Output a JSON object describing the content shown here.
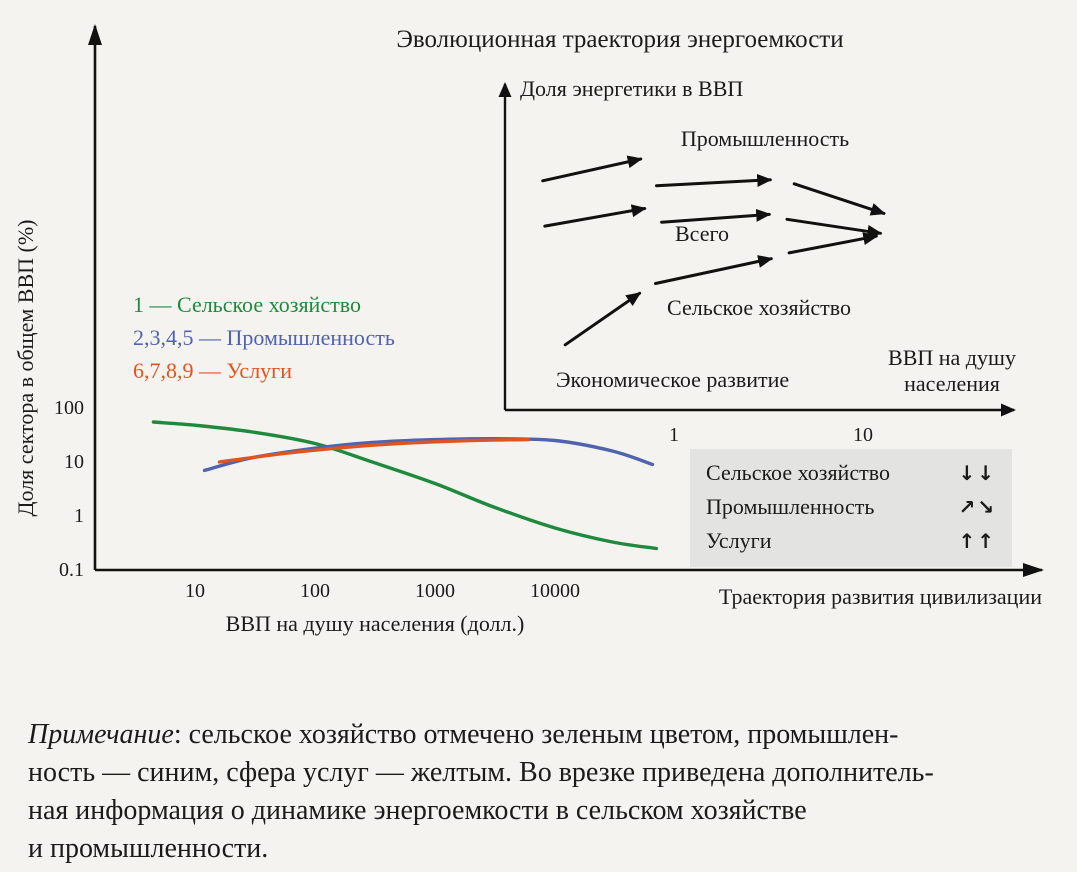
{
  "colors": {
    "page_bg": "#f5f3ef",
    "box_bg": "#e3e3e1",
    "axis": "#111111",
    "text": "#1b1b1b",
    "agriculture": "#1f8a3e",
    "industry": "#4f63ae",
    "services": "#e0551f"
  },
  "chart_data": [
    {
      "name": "main",
      "type": "line",
      "title": "Эволюционная траектория энергоемкости",
      "xlabel": "ВВП на душу населения (долл.)",
      "ylabel": "Доля сектора в общем ВВП (%)",
      "x_scale": "log",
      "y_scale": "log",
      "xlim": [
        4,
        100000
      ],
      "ylim": [
        0.1,
        1000
      ],
      "x_ticks": [
        "10",
        "100",
        "1000",
        "10000"
      ],
      "y_ticks": [
        "100",
        "10",
        "1",
        "0.1"
      ],
      "x_axis_annotation": "Траектория развития цивилизации",
      "grid": false,
      "legend_position": "left-middle",
      "series": [
        {
          "key": "agriculture",
          "name": "Сельское хозяйство",
          "legend_label": "1 — Сельское хозяйство",
          "color": "#1f8a3e",
          "points": [
            [
              4.5,
              55
            ],
            [
              10,
              48
            ],
            [
              30,
              36
            ],
            [
              100,
              22
            ],
            [
              300,
              10
            ],
            [
              1000,
              4
            ],
            [
              3000,
              1.5
            ],
            [
              10000,
              0.6
            ],
            [
              30000,
              0.33
            ],
            [
              70000,
              0.25
            ]
          ]
        },
        {
          "key": "industry",
          "name": "Промышленность",
          "legend_label": "2,3,4,5 — Промышленность",
          "color": "#4f63ae",
          "points": [
            [
              12,
              7
            ],
            [
              30,
              12
            ],
            [
              100,
              18
            ],
            [
              300,
              23
            ],
            [
              1000,
              26
            ],
            [
              3000,
              27
            ],
            [
              10000,
              25
            ],
            [
              30000,
              16
            ],
            [
              65000,
              9
            ]
          ]
        },
        {
          "key": "services",
          "name": "Услуги",
          "legend_label": "6,7,8,9 — Услуги",
          "color": "#e0551f",
          "points": [
            [
              16,
              10
            ],
            [
              50,
              14
            ],
            [
              150,
              18
            ],
            [
              500,
              22
            ],
            [
              2000,
              25
            ],
            [
              6000,
              26
            ]
          ]
        }
      ]
    },
    {
      "name": "inset",
      "type": "diagram",
      "ylabel": "Доля энергетики в ВВП",
      "xlabel_left": "Экономическое развитие",
      "xlabel_right": [
        "ВВП на душу",
        "населения"
      ],
      "x_ticks": [
        "1",
        "10"
      ],
      "trajectory_labels": [
        "Промышленность",
        "Всего",
        "Сельское хозяйство"
      ],
      "arrows": [
        {
          "group": "industry",
          "from": [
            0.074,
            0.703
          ],
          "to": [
            0.266,
            0.77
          ]
        },
        {
          "group": "industry",
          "from": [
            0.297,
            0.688
          ],
          "to": [
            0.52,
            0.706
          ]
        },
        {
          "group": "industry",
          "from": [
            0.567,
            0.694
          ],
          "to": [
            0.743,
            0.603
          ]
        },
        {
          "group": "total",
          "from": [
            0.078,
            0.564
          ],
          "to": [
            0.274,
            0.618
          ]
        },
        {
          "group": "total",
          "from": [
            0.307,
            0.576
          ],
          "to": [
            0.518,
            0.6
          ]
        },
        {
          "group": "total",
          "from": [
            0.553,
            0.585
          ],
          "to": [
            0.736,
            0.542
          ]
        },
        {
          "group": "agriculture",
          "from": [
            0.118,
            0.2
          ],
          "to": [
            0.264,
            0.358
          ]
        },
        {
          "group": "agriculture",
          "from": [
            0.295,
            0.388
          ],
          "to": [
            0.522,
            0.464
          ]
        },
        {
          "group": "agriculture",
          "from": [
            0.557,
            0.482
          ],
          "to": [
            0.728,
            0.533
          ]
        }
      ]
    }
  ],
  "summary_box": {
    "rows": [
      {
        "label": "Сельское хозяйство",
        "symbol": "↓↓"
      },
      {
        "label": "Промышленность",
        "symbol": "↗↘"
      },
      {
        "label": "Услуги",
        "symbol": "↑↑"
      }
    ]
  },
  "note": {
    "label": "Примечание",
    "line1_rest": ": сельское хозяйство отмечено зеленым цветом, промышлен-",
    "line2": "ность — синим, сфера услуг — желтым. Во врезке приведена дополнитель-",
    "line3": "ная информация о динамике энергоемкости в сельском хозяйстве",
    "line4": "и промышленности."
  }
}
